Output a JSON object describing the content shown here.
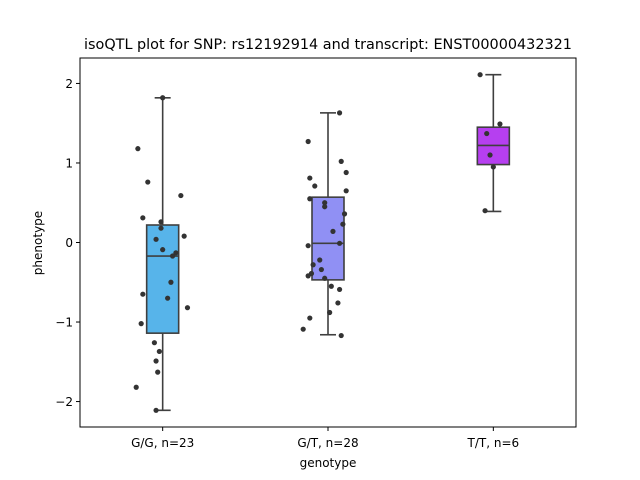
{
  "chart_data": {
    "type": "box",
    "title": "isoQTL plot for SNP: rs12192914 and transcript: ENST00000432321",
    "xlabel": "genotype",
    "ylabel": "phenotype",
    "ylim": [
      -2.32,
      2.32
    ],
    "yticks": [
      -2,
      -1,
      0,
      1,
      2
    ],
    "ytick_labels": [
      "−2",
      "−1",
      "0",
      "1",
      "2"
    ],
    "grid": false,
    "categories": [
      "G/G, n=23",
      "G/T, n=28",
      "T/T, n=6"
    ],
    "colors": [
      "#57b4ea",
      "#9090f4",
      "#b63ff0"
    ],
    "boxes": [
      {
        "label": "G/G, n=23",
        "q1": -1.14,
        "median": -0.17,
        "q3": 0.22,
        "whisker_low": -2.11,
        "whisker_high": 1.82
      },
      {
        "label": "G/T, n=28",
        "q1": -0.47,
        "median": -0.01,
        "q3": 0.57,
        "whisker_low": -1.16,
        "whisker_high": 1.63
      },
      {
        "label": "T/T, n=6",
        "q1": 0.98,
        "median": 1.22,
        "q3": 1.45,
        "whisker_low": 0.39,
        "whisker_high": 2.11
      }
    ],
    "points": [
      [
        {
          "x": 0.0,
          "y": 1.82
        },
        {
          "x": -0.15,
          "y": 1.18
        },
        {
          "x": -0.09,
          "y": 0.76
        },
        {
          "x": 0.11,
          "y": 0.59
        },
        {
          "x": -0.12,
          "y": 0.31
        },
        {
          "x": -0.01,
          "y": 0.26
        },
        {
          "x": -0.01,
          "y": 0.18
        },
        {
          "x": 0.13,
          "y": 0.08
        },
        {
          "x": -0.04,
          "y": 0.04
        },
        {
          "x": -0.0,
          "y": -0.09
        },
        {
          "x": 0.08,
          "y": -0.13
        },
        {
          "x": 0.06,
          "y": -0.17
        },
        {
          "x": 0.05,
          "y": -0.5
        },
        {
          "x": -0.12,
          "y": -0.65
        },
        {
          "x": 0.03,
          "y": -0.7
        },
        {
          "x": 0.15,
          "y": -0.82
        },
        {
          "x": -0.13,
          "y": -1.02
        },
        {
          "x": -0.05,
          "y": -1.26
        },
        {
          "x": -0.02,
          "y": -1.37
        },
        {
          "x": -0.04,
          "y": -1.49
        },
        {
          "x": -0.03,
          "y": -1.63
        },
        {
          "x": -0.16,
          "y": -1.82
        },
        {
          "x": -0.04,
          "y": -2.11
        }
      ],
      [
        {
          "x": 0.07,
          "y": 1.63
        },
        {
          "x": -0.12,
          "y": 1.27
        },
        {
          "x": 0.08,
          "y": 1.02
        },
        {
          "x": 0.11,
          "y": 0.88
        },
        {
          "x": -0.11,
          "y": 0.81
        },
        {
          "x": -0.08,
          "y": 0.71
        },
        {
          "x": 0.11,
          "y": 0.65
        },
        {
          "x": -0.11,
          "y": 0.55
        },
        {
          "x": -0.02,
          "y": 0.5
        },
        {
          "x": -0.02,
          "y": 0.45
        },
        {
          "x": 0.1,
          "y": 0.36
        },
        {
          "x": 0.09,
          "y": 0.23
        },
        {
          "x": 0.03,
          "y": 0.14
        },
        {
          "x": 0.07,
          "y": -0.01
        },
        {
          "x": -0.12,
          "y": -0.04
        },
        {
          "x": -0.05,
          "y": -0.22
        },
        {
          "x": -0.09,
          "y": -0.28
        },
        {
          "x": -0.04,
          "y": -0.34
        },
        {
          "x": -0.1,
          "y": -0.39
        },
        {
          "x": -0.02,
          "y": -0.45
        },
        {
          "x": 0.02,
          "y": -0.55
        },
        {
          "x": 0.07,
          "y": -0.59
        },
        {
          "x": 0.06,
          "y": -0.76
        },
        {
          "x": 0.01,
          "y": -0.88
        },
        {
          "x": -0.11,
          "y": -0.95
        },
        {
          "x": -0.15,
          "y": -1.09
        },
        {
          "x": 0.08,
          "y": -1.17
        },
        {
          "x": -0.12,
          "y": -0.42
        }
      ],
      [
        {
          "x": -0.08,
          "y": 2.11
        },
        {
          "x": 0.04,
          "y": 1.49
        },
        {
          "x": -0.04,
          "y": 1.37
        },
        {
          "x": -0.02,
          "y": 1.1
        },
        {
          "x": 0.0,
          "y": 0.95
        },
        {
          "x": -0.05,
          "y": 0.4
        }
      ]
    ]
  }
}
